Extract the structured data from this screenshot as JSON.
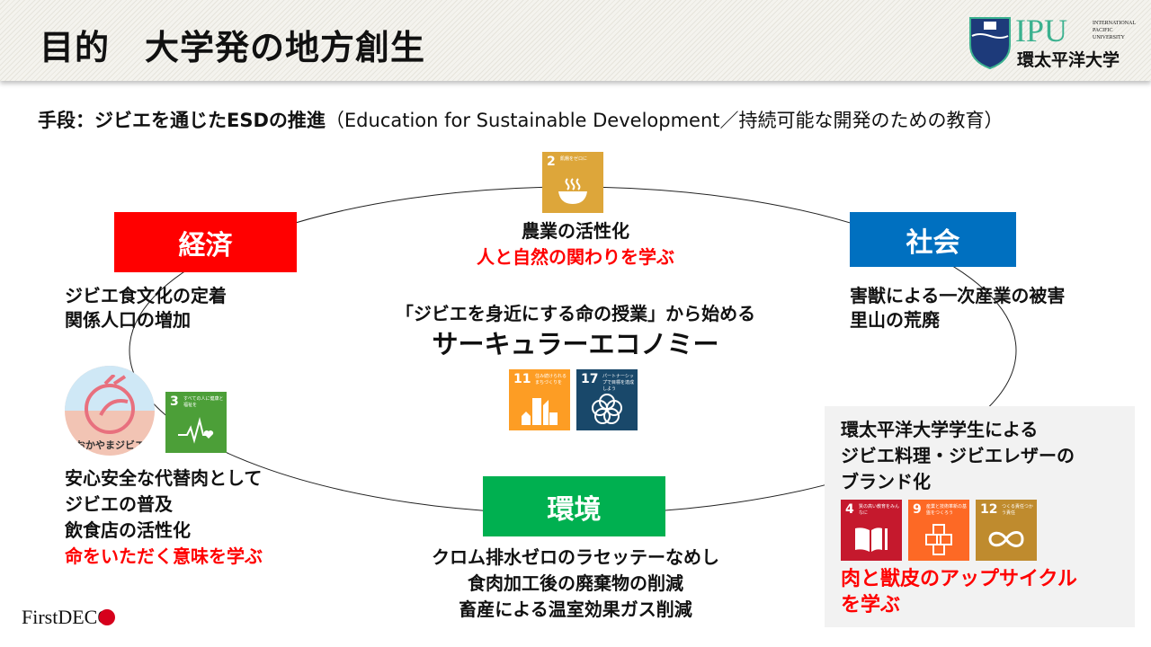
{
  "header": {
    "title": "目的　大学発の地方創生",
    "logo": {
      "abbr": "IPU",
      "en": [
        "INTERNATIONAL",
        "PACIFIC",
        "UNIVERSITY"
      ],
      "ja": "環太平洋大学"
    }
  },
  "subtitle": {
    "bold": "手段：ジビエを通じたESDの推進",
    "normal": "（Education for Sustainable Development／持続可能な開発のための教育）"
  },
  "center": {
    "line1": "「ジビエを身近にする命の授業」から始める",
    "line2": "サーキュラーエコノミー"
  },
  "top": {
    "line1": "農業の活性化",
    "line2": "人と自然の関わりを学ぶ"
  },
  "economy": {
    "label": "経済",
    "color": "#ff0000",
    "lines": [
      "ジビエ食文化の定着",
      "関係人口の増加"
    ]
  },
  "society": {
    "label": "社会",
    "color": "#0070c0",
    "lines": [
      "害獣による一次産業の被害",
      "里山の荒廃"
    ]
  },
  "environment": {
    "label": "環境",
    "color": "#00b050",
    "lines": [
      "クロム排水ゼロのラセッテーなめし",
      "食肉加工後の廃棄物の削減",
      "畜産による温室効果ガス削減"
    ]
  },
  "left_bottom": {
    "lines": [
      "安心安全な代替肉として",
      "ジビエの普及",
      "飲食店の活性化"
    ],
    "red": "命をいただく意味を学ぶ",
    "logo_text": "おかやまジビエ"
  },
  "right_box": {
    "lines": [
      "環太平洋大学学生による",
      "ジビエ料理・ジビエレザーの",
      "ブランド化"
    ],
    "red": [
      "肉と獣皮のアップサイクル",
      "を学ぶ"
    ]
  },
  "sdgs": {
    "g2": {
      "num": "2",
      "label": "飢餓をゼロに",
      "color": "#dda63a",
      "icon": "bowl-icon"
    },
    "g3": {
      "num": "3",
      "label": "すべての人に健康と福祉を",
      "color": "#4c9f38",
      "icon": "heartbeat-icon"
    },
    "g11": {
      "num": "11",
      "label": "住み続けられるまちづくりを",
      "color": "#fd9d24",
      "icon": "buildings-icon"
    },
    "g17": {
      "num": "17",
      "label": "パートナーシップで目標を達成しよう",
      "color": "#19486a",
      "icon": "flower-rings-icon"
    },
    "g4": {
      "num": "4",
      "label": "質の高い教育をみんなに",
      "color": "#c5192d",
      "icon": "book-icon"
    },
    "g9": {
      "num": "9",
      "label": "産業と技術革新の基盤をつくろう",
      "color": "#fd6925",
      "icon": "cubes-icon"
    },
    "g12": {
      "num": "12",
      "label": "つくる責任つかう責任",
      "color": "#bf8b2e",
      "icon": "infinity-icon"
    }
  },
  "footer": {
    "logo": "FirstDECO"
  }
}
